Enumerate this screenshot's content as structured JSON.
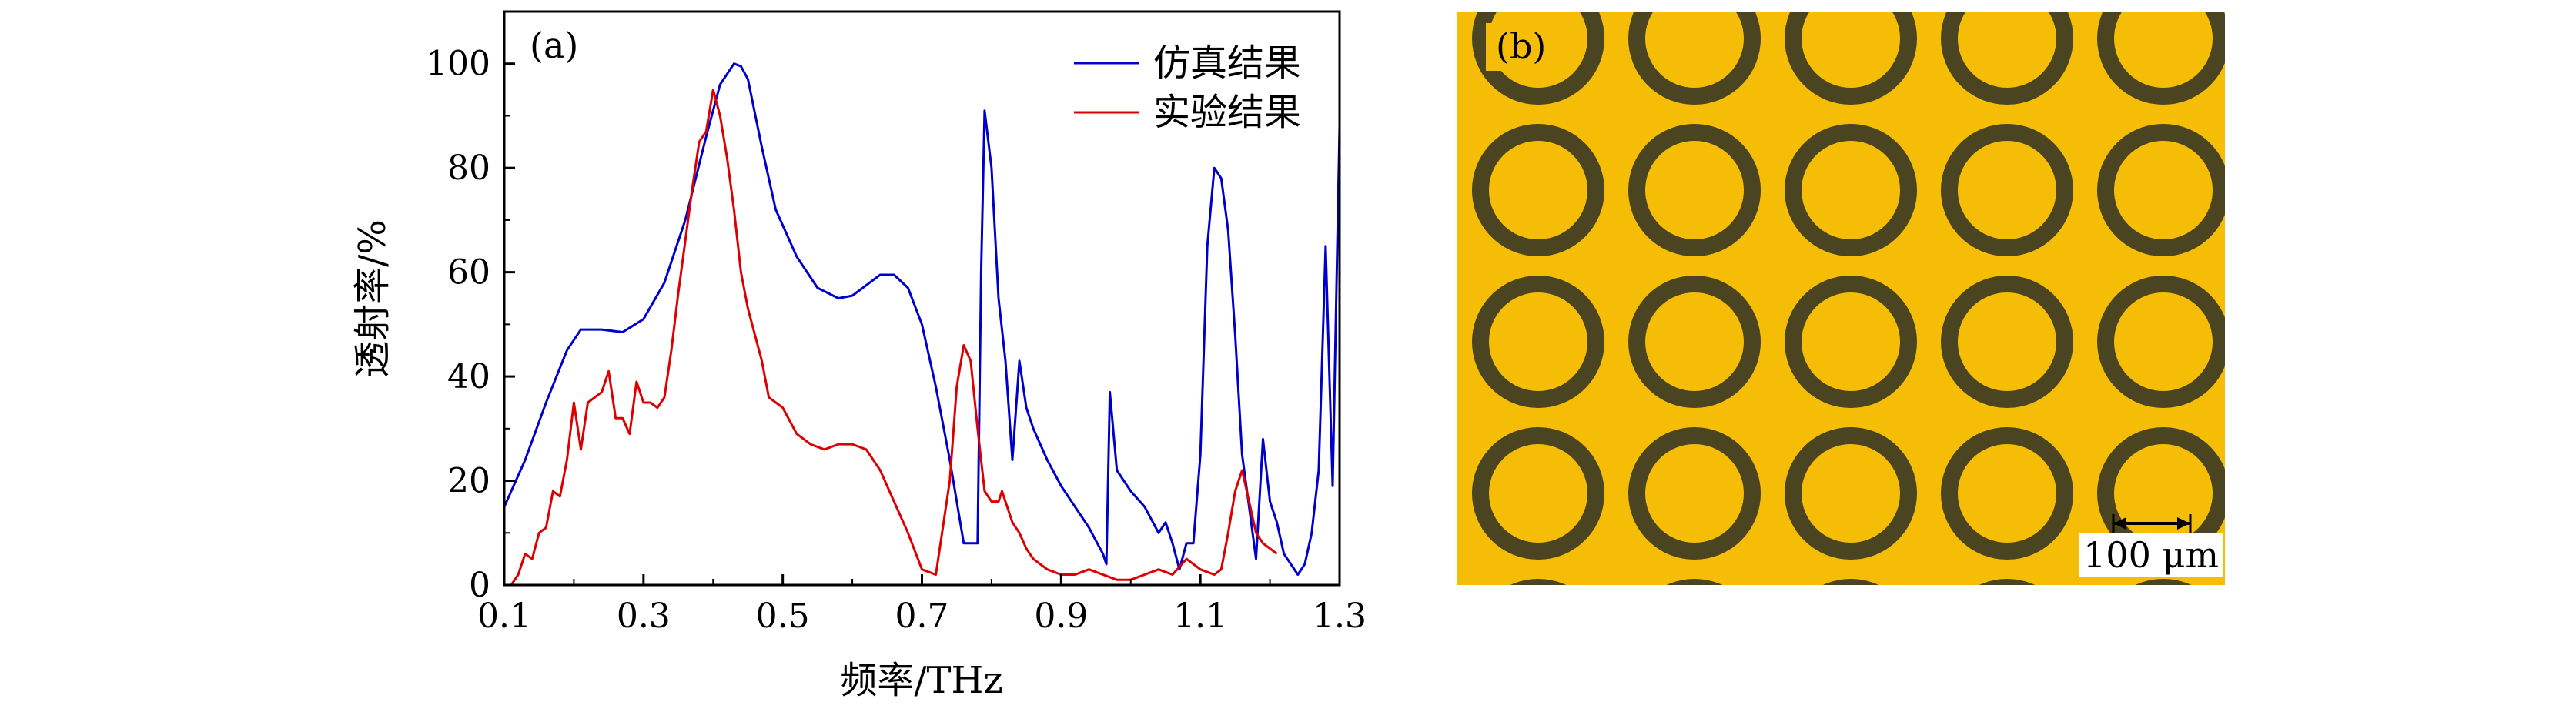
{
  "chart_data": {
    "type": "line",
    "panel_label": "(a)",
    "xlabel": "频率/THz",
    "ylabel": "透射率/%",
    "xlim": [
      0.1,
      1.3
    ],
    "ylim": [
      0,
      110
    ],
    "x_ticks": [
      "0.1",
      "0.3",
      "0.5",
      "0.7",
      "0.9",
      "1.1",
      "1.3"
    ],
    "x_tick_values": [
      0.1,
      0.3,
      0.5,
      0.7,
      0.9,
      1.1,
      1.3
    ],
    "y_ticks": [
      "0",
      "20",
      "40",
      "60",
      "80",
      "100"
    ],
    "y_tick_values": [
      0,
      20,
      40,
      60,
      80,
      100
    ],
    "legend_position": "top-right",
    "grid": false,
    "series": [
      {
        "name": "仿真结果",
        "color": "#0000cc",
        "x": [
          0.1,
          0.13,
          0.16,
          0.19,
          0.21,
          0.24,
          0.27,
          0.3,
          0.33,
          0.36,
          0.39,
          0.41,
          0.43,
          0.44,
          0.45,
          0.47,
          0.49,
          0.52,
          0.55,
          0.58,
          0.6,
          0.62,
          0.64,
          0.66,
          0.68,
          0.7,
          0.72,
          0.74,
          0.76,
          0.78,
          0.785,
          0.79,
          0.8,
          0.81,
          0.82,
          0.83,
          0.84,
          0.85,
          0.86,
          0.88,
          0.9,
          0.92,
          0.94,
          0.96,
          0.965,
          0.97,
          0.98,
          0.99,
          1.0,
          1.02,
          1.04,
          1.05,
          1.06,
          1.07,
          1.08,
          1.09,
          1.1,
          1.11,
          1.12,
          1.13,
          1.14,
          1.15,
          1.16,
          1.17,
          1.18,
          1.19,
          1.2,
          1.21,
          1.22,
          1.24,
          1.25,
          1.26,
          1.27,
          1.28,
          1.29,
          1.3
        ],
        "y": [
          15,
          24,
          35,
          45,
          49,
          49,
          48.5,
          51,
          58,
          70,
          86,
          96,
          100,
          99.5,
          97,
          84,
          72,
          63,
          57,
          55,
          55.5,
          57.5,
          59.5,
          59.5,
          57,
          50,
          38,
          24,
          8,
          8,
          60,
          91,
          80,
          55,
          43,
          24,
          43,
          34,
          30,
          24,
          19,
          15,
          11,
          6,
          4,
          37,
          22,
          20,
          18,
          15,
          10,
          12,
          8,
          3,
          8,
          8,
          25,
          65,
          80,
          78,
          68,
          48,
          25,
          15,
          5,
          28,
          16,
          12,
          6,
          2,
          4,
          10,
          22,
          65,
          19,
          88
        ],
        "visible_x_ticks": [
          "0.1",
          "0.3",
          "0.5",
          "0.7",
          "0.9",
          "1.1",
          "1.3"
        ]
      },
      {
        "name": "实验结果",
        "color": "#dd0000",
        "x": [
          0.1,
          0.11,
          0.12,
          0.13,
          0.14,
          0.15,
          0.16,
          0.17,
          0.18,
          0.19,
          0.2,
          0.21,
          0.22,
          0.23,
          0.24,
          0.25,
          0.26,
          0.27,
          0.28,
          0.29,
          0.3,
          0.31,
          0.32,
          0.33,
          0.34,
          0.35,
          0.36,
          0.37,
          0.38,
          0.39,
          0.4,
          0.41,
          0.42,
          0.43,
          0.44,
          0.45,
          0.46,
          0.47,
          0.48,
          0.5,
          0.52,
          0.54,
          0.56,
          0.58,
          0.6,
          0.62,
          0.64,
          0.66,
          0.68,
          0.7,
          0.72,
          0.74,
          0.75,
          0.76,
          0.77,
          0.78,
          0.79,
          0.8,
          0.81,
          0.815,
          0.82,
          0.83,
          0.84,
          0.85,
          0.86,
          0.87,
          0.88,
          0.9,
          0.92,
          0.94,
          0.96,
          0.98,
          1.0,
          1.02,
          1.04,
          1.06,
          1.08,
          1.1,
          1.12,
          1.13,
          1.14,
          1.15,
          1.16,
          1.17,
          1.18,
          1.19,
          1.2,
          1.21
        ],
        "y": [
          0,
          0,
          2,
          6,
          5,
          10,
          11,
          18,
          17,
          24,
          35,
          26,
          35,
          36,
          37,
          41,
          32,
          32,
          29,
          39,
          35,
          35,
          34,
          36,
          45,
          56,
          66,
          76,
          85,
          87,
          95,
          90,
          82,
          72,
          60,
          53,
          48,
          43,
          36,
          34,
          29,
          27,
          26,
          27,
          27,
          26,
          22,
          16,
          10,
          3,
          2,
          20,
          38,
          46,
          43,
          30,
          18,
          16,
          16,
          18,
          16,
          12,
          10,
          7,
          5,
          4,
          3,
          2,
          2,
          3,
          2,
          1,
          1,
          2,
          3,
          2,
          5,
          3,
          2,
          3,
          10,
          18,
          22,
          16,
          10,
          8,
          7,
          6
        ]
      }
    ]
  },
  "panel_b": {
    "panel_label": "(b)",
    "scale_bar_label": "100 μm",
    "background_color": "#f5bd06",
    "ring_color": "#4a4421",
    "rows": 5,
    "cols": 5
  }
}
